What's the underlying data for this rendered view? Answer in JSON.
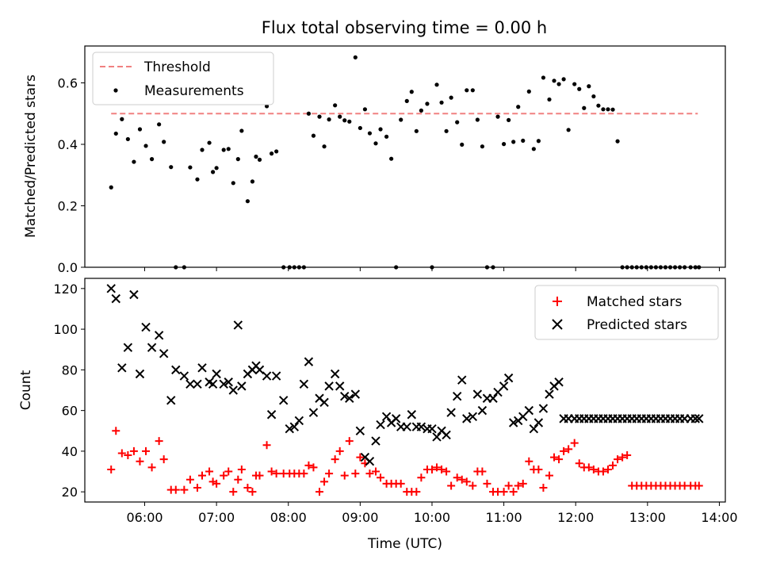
{
  "chart_data": [
    {
      "type": "scatter",
      "title": "Flux total observing time = 0.00 h",
      "xlabel": "",
      "ylabel": "Matched/Predicted stars",
      "xlim": [
        "05:10",
        "14:05"
      ],
      "ylim": [
        0,
        0.72
      ],
      "yticks": [
        0.0,
        0.2,
        0.4,
        0.6
      ],
      "ytick_labels": [
        "0.0",
        "0.2",
        "0.4",
        "0.6"
      ],
      "grid": false,
      "legend_placement": "top-left",
      "threshold": {
        "name": "Threshold",
        "y": 0.5,
        "x_range": [
          "05:32",
          "13:42"
        ],
        "color": "#f08080"
      },
      "series": [
        {
          "name": "Measurements",
          "marker": "dot",
          "color": "#000000",
          "x": [
            "05:32",
            "05:36",
            "05:41",
            "05:46",
            "05:51",
            "05:56",
            "06:01",
            "06:06",
            "06:12",
            "06:16",
            "06:22",
            "06:26",
            "06:33",
            "06:38",
            "06:44",
            "06:48",
            "06:54",
            "06:57",
            "07:00",
            "07:06",
            "07:10",
            "07:14",
            "07:18",
            "07:21",
            "07:26",
            "07:30",
            "07:33",
            "07:36",
            "07:42",
            "07:46",
            "07:50",
            "07:56",
            "08:01",
            "08:05",
            "08:09",
            "08:13",
            "08:17",
            "08:21",
            "08:26",
            "08:30",
            "08:34",
            "08:39",
            "08:43",
            "08:47",
            "08:51",
            "08:56",
            "09:00",
            "09:04",
            "09:08",
            "09:13",
            "09:17",
            "09:22",
            "09:26",
            "09:30",
            "09:34",
            "09:39",
            "09:43",
            "09:47",
            "09:51",
            "09:56",
            "10:00",
            "10:04",
            "10:08",
            "10:12",
            "10:16",
            "10:21",
            "10:25",
            "10:29",
            "10:34",
            "10:38",
            "10:42",
            "10:46",
            "10:51",
            "10:55",
            "11:00",
            "11:04",
            "11:08",
            "11:12",
            "11:16",
            "11:21",
            "11:25",
            "11:29",
            "11:33",
            "11:38",
            "11:42",
            "11:46",
            "11:50",
            "11:54",
            "11:59",
            "12:03",
            "12:07",
            "12:11",
            "12:15",
            "12:19",
            "12:23",
            "12:27",
            "12:31",
            "12:35",
            "12:39",
            "12:43",
            "12:47",
            "12:51",
            "12:55",
            "12:59",
            "13:03",
            "13:07",
            "13:11",
            "13:15",
            "13:19",
            "13:23",
            "13:27",
            "13:31",
            "13:36",
            "13:40",
            "13:43"
          ],
          "y": [
            0.26,
            0.435,
            0.482,
            0.417,
            0.343,
            0.449,
            0.395,
            0.352,
            0.465,
            0.408,
            0.326,
            0.0,
            0.0,
            0.325,
            0.286,
            0.382,
            0.405,
            0.31,
            0.323,
            0.382,
            0.385,
            0.274,
            0.352,
            0.444,
            0.215,
            0.279,
            0.36,
            0.35,
            0.524,
            0.37,
            0.377,
            0.0,
            0.0,
            0.0,
            0.0,
            0.0,
            0.5,
            0.428,
            0.49,
            0.393,
            0.481,
            0.527,
            0.49,
            0.478,
            0.474,
            0.683,
            0.453,
            0.514,
            0.436,
            0.403,
            0.449,
            0.425,
            0.353,
            0.0,
            0.48,
            0.541,
            0.571,
            0.443,
            0.51,
            0.532,
            0.0,
            0.594,
            0.536,
            0.443,
            0.552,
            0.472,
            0.399,
            0.576,
            0.576,
            0.48,
            0.393,
            0.0,
            0.0,
            0.49,
            0.401,
            0.479,
            0.408,
            0.522,
            0.412,
            0.572,
            0.385,
            0.411,
            0.617,
            0.546,
            0.607,
            0.596,
            0.612,
            0.447,
            0.596,
            0.58,
            0.518,
            0.589,
            0.556,
            0.526,
            0.514,
            0.514,
            0.513,
            0.41,
            0.0,
            0.0,
            0.0,
            0.0,
            0.0,
            0.0,
            0.0,
            0.0,
            0.0,
            0.0,
            0.0,
            0.0,
            0.0,
            0.0,
            0.0,
            0.0,
            0.0
          ]
        }
      ]
    },
    {
      "type": "scatter",
      "title": "",
      "xlabel": "Time (UTC)",
      "ylabel": "Count",
      "xlim": [
        "05:10",
        "14:05"
      ],
      "ylim": [
        15,
        125
      ],
      "xticks": [
        "06:00",
        "07:00",
        "08:00",
        "09:00",
        "10:00",
        "11:00",
        "12:00",
        "13:00",
        "14:00"
      ],
      "xtick_labels": [
        "06:00",
        "07:00",
        "08:00",
        "09:00",
        "10:00",
        "11:00",
        "12:00",
        "13:00",
        "14:00"
      ],
      "yticks": [
        20,
        40,
        60,
        80,
        100,
        120
      ],
      "ytick_labels": [
        "20",
        "40",
        "60",
        "80",
        "100",
        "120"
      ],
      "grid": false,
      "legend_placement": "top-right",
      "series": [
        {
          "name": "Matched stars",
          "marker": "plus",
          "color": "#ff0000",
          "x": [
            "05:32",
            "05:36",
            "05:41",
            "05:46",
            "05:51",
            "05:56",
            "06:01",
            "06:06",
            "06:12",
            "06:16",
            "06:22",
            "06:26",
            "06:33",
            "06:38",
            "06:44",
            "06:48",
            "06:54",
            "06:57",
            "07:00",
            "07:06",
            "07:10",
            "07:14",
            "07:18",
            "07:21",
            "07:26",
            "07:30",
            "07:33",
            "07:36",
            "07:42",
            "07:46",
            "07:50",
            "07:56",
            "08:01",
            "08:05",
            "08:09",
            "08:13",
            "08:17",
            "08:21",
            "08:26",
            "08:30",
            "08:34",
            "08:39",
            "08:43",
            "08:47",
            "08:51",
            "08:56",
            "09:00",
            "09:04",
            "09:08",
            "09:13",
            "09:17",
            "09:22",
            "09:26",
            "09:30",
            "09:34",
            "09:39",
            "09:43",
            "09:47",
            "09:51",
            "09:56",
            "10:00",
            "10:04",
            "10:08",
            "10:12",
            "10:16",
            "10:21",
            "10:25",
            "10:29",
            "10:34",
            "10:38",
            "10:42",
            "10:46",
            "10:51",
            "10:55",
            "11:00",
            "11:04",
            "11:08",
            "11:12",
            "11:16",
            "11:21",
            "11:25",
            "11:29",
            "11:33",
            "11:38",
            "11:42",
            "11:46",
            "11:50",
            "11:54",
            "11:59",
            "12:03",
            "12:07",
            "12:11",
            "12:15",
            "12:19",
            "12:23",
            "12:27",
            "12:31",
            "12:35",
            "12:39",
            "12:43",
            "12:47",
            "12:51",
            "12:55",
            "12:59",
            "13:03",
            "13:07",
            "13:11",
            "13:15",
            "13:19",
            "13:23",
            "13:27",
            "13:31",
            "13:36",
            "13:40",
            "13:43"
          ],
          "y": [
            31,
            50,
            39,
            38,
            40,
            35,
            40,
            32,
            45,
            36,
            21,
            21,
            21,
            26,
            22,
            28,
            30,
            25,
            24,
            28,
            30,
            20,
            26,
            31,
            22,
            20,
            28,
            28,
            43,
            30,
            29,
            29,
            29,
            29,
            29,
            29,
            33,
            32,
            20,
            25,
            29,
            36,
            40,
            28,
            45,
            29,
            37,
            34,
            29,
            30,
            27,
            24,
            24,
            24,
            24,
            20,
            20,
            20,
            27,
            31,
            31,
            32,
            31,
            30,
            23,
            27,
            26,
            25,
            23,
            30,
            30,
            24,
            20,
            20,
            20,
            23,
            20,
            23,
            24,
            35,
            31,
            31,
            22,
            28,
            37,
            36,
            40,
            41,
            44,
            34,
            32,
            32,
            31,
            30,
            30,
            31,
            33,
            36,
            37,
            38,
            23,
            23,
            23,
            23,
            23,
            23,
            23,
            23,
            23,
            23,
            23,
            23,
            23,
            23,
            23
          ]
        },
        {
          "name": "Predicted stars",
          "marker": "x",
          "color": "#000000",
          "x": [
            "05:32",
            "05:36",
            "05:41",
            "05:46",
            "05:51",
            "05:56",
            "06:01",
            "06:06",
            "06:12",
            "06:16",
            "06:22",
            "06:26",
            "06:33",
            "06:38",
            "06:44",
            "06:48",
            "06:54",
            "06:57",
            "07:00",
            "07:06",
            "07:10",
            "07:14",
            "07:18",
            "07:21",
            "07:26",
            "07:30",
            "07:33",
            "07:36",
            "07:42",
            "07:46",
            "07:50",
            "07:56",
            "08:01",
            "08:05",
            "08:09",
            "08:13",
            "08:17",
            "08:21",
            "08:26",
            "08:30",
            "08:34",
            "08:39",
            "08:43",
            "08:47",
            "08:51",
            "08:56",
            "09:00",
            "09:04",
            "09:08",
            "09:13",
            "09:17",
            "09:22",
            "09:26",
            "09:30",
            "09:34",
            "09:39",
            "09:43",
            "09:47",
            "09:51",
            "09:56",
            "10:00",
            "10:04",
            "10:08",
            "10:12",
            "10:16",
            "10:21",
            "10:25",
            "10:29",
            "10:34",
            "10:38",
            "10:42",
            "10:46",
            "10:51",
            "10:55",
            "11:00",
            "11:04",
            "11:08",
            "11:12",
            "11:16",
            "11:21",
            "11:25",
            "11:29",
            "11:33",
            "11:38",
            "11:42",
            "11:46",
            "11:50",
            "11:54",
            "11:59",
            "12:03",
            "12:07",
            "12:11",
            "12:15",
            "12:19",
            "12:23",
            "12:27",
            "12:31",
            "12:35",
            "12:39",
            "12:43",
            "12:47",
            "12:51",
            "12:55",
            "12:59",
            "13:03",
            "13:07",
            "13:11",
            "13:15",
            "13:19",
            "13:23",
            "13:27",
            "13:31",
            "13:36",
            "13:40",
            "13:43"
          ],
          "y": [
            120,
            115,
            81,
            91,
            117,
            78,
            101,
            91,
            97,
            88,
            65,
            80,
            77,
            73,
            73,
            81,
            74,
            73,
            78,
            73,
            74,
            70,
            102,
            72,
            78,
            80,
            82,
            80,
            77,
            58,
            77,
            65,
            51,
            52,
            55,
            73,
            84,
            59,
            66,
            64,
            72,
            78,
            72,
            67,
            66,
            68,
            50,
            37,
            35,
            45,
            53,
            57,
            54,
            56,
            52,
            52,
            58,
            52,
            52,
            51,
            51,
            47,
            50,
            48,
            59,
            67,
            75,
            56,
            57,
            68,
            60,
            66,
            66,
            69,
            72,
            76,
            54,
            55,
            57,
            60,
            51,
            54,
            61,
            68,
            72,
            74,
            56,
            56,
            56,
            56,
            56,
            56,
            56,
            56,
            56,
            56,
            56,
            56,
            56,
            56,
            56,
            56,
            56,
            56,
            56,
            56,
            56,
            56,
            56,
            56,
            56,
            56,
            56,
            56,
            56
          ]
        }
      ]
    }
  ]
}
